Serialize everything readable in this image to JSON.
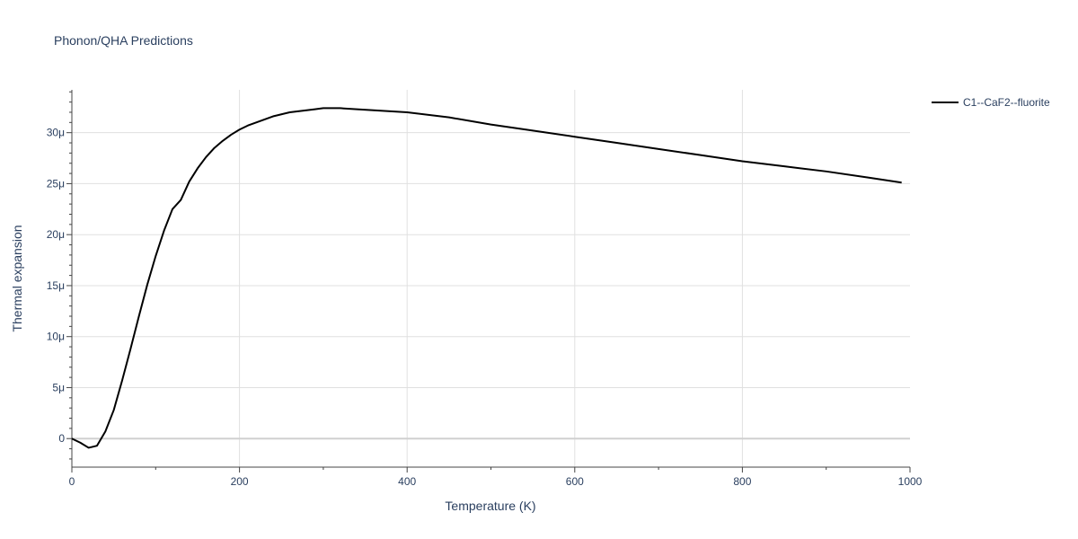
{
  "chart_data": {
    "type": "line",
    "title": "Phonon/QHA Predictions",
    "xlabel": "Temperature (K)",
    "ylabel": "Thermal expansion",
    "xlim": [
      0,
      1000
    ],
    "ylim": [
      -2.8e-06,
      3.42e-05
    ],
    "grid": true,
    "legend_position": "top-right",
    "x_ticks": [
      0,
      200,
      400,
      600,
      800,
      1000
    ],
    "x_tick_labels": [
      "0",
      "200",
      "400",
      "600",
      "800",
      "1000"
    ],
    "y_ticks": [
      0,
      5e-06,
      1e-05,
      1.5e-05,
      2e-05,
      2.5e-05,
      3e-05
    ],
    "y_tick_labels": [
      "0",
      "5μ",
      "10μ",
      "15μ",
      "20μ",
      "25μ",
      "30μ"
    ],
    "series": [
      {
        "name": "C1--CaF2--fluorite",
        "color": "#000000",
        "x": [
          0,
          10,
          20,
          30,
          40,
          50,
          60,
          70,
          80,
          90,
          100,
          110,
          120,
          130,
          140,
          150,
          160,
          170,
          180,
          190,
          200,
          210,
          220,
          230,
          240,
          250,
          260,
          270,
          280,
          290,
          300,
          320,
          340,
          360,
          380,
          400,
          450,
          500,
          550,
          600,
          650,
          700,
          750,
          800,
          850,
          900,
          950,
          990
        ],
        "y": [
          0.0,
          -4e-07,
          -9e-07,
          -7e-07,
          7e-07,
          2.8e-06,
          5.7e-06,
          8.8e-06,
          1.2e-05,
          1.51e-05,
          1.79e-05,
          2.04e-05,
          2.25e-05,
          2.34e-05,
          2.52e-05,
          2.65e-05,
          2.76e-05,
          2.85e-05,
          2.92e-05,
          2.98e-05,
          3.03e-05,
          3.07e-05,
          3.1e-05,
          3.13e-05,
          3.16e-05,
          3.18e-05,
          3.2e-05,
          3.21e-05,
          3.22e-05,
          3.23e-05,
          3.24e-05,
          3.24e-05,
          3.23e-05,
          3.22e-05,
          3.21e-05,
          3.2e-05,
          3.15e-05,
          3.08e-05,
          3.02e-05,
          2.96e-05,
          2.9e-05,
          2.84e-05,
          2.78e-05,
          2.72e-05,
          2.67e-05,
          2.62e-05,
          2.56e-05,
          2.51e-05
        ]
      }
    ]
  }
}
